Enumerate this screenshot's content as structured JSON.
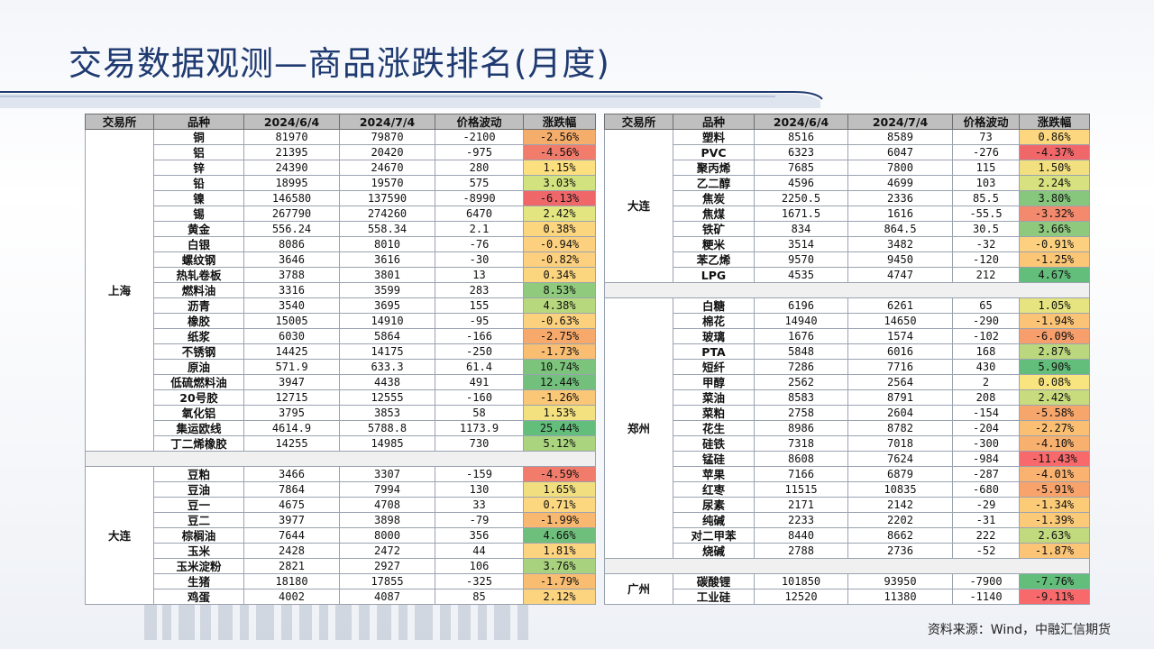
{
  "title": "交易数据观测—商品涨跌排名(月度)",
  "source": "资料来源：Wind，中融汇信期货",
  "headers": [
    "交易所",
    "品种",
    "2024/6/4",
    "2024/7/4",
    "价格波动",
    "涨跌幅"
  ],
  "left_groups": [
    {
      "exchange": "上海",
      "rows": [
        {
          "name": "铜",
          "d1": "81970",
          "d2": "79870",
          "chg": "-2100",
          "pct": "-2.56%",
          "color": "#f5ad6b"
        },
        {
          "name": "铝",
          "d1": "21395",
          "d2": "20420",
          "chg": "-975",
          "pct": "-4.56%",
          "color": "#f27c6c"
        },
        {
          "name": "锌",
          "d1": "24390",
          "d2": "24670",
          "chg": "280",
          "pct": "1.15%",
          "color": "#fcdf7e"
        },
        {
          "name": "铅",
          "d1": "18995",
          "d2": "19570",
          "chg": "575",
          "pct": "3.03%",
          "color": "#d2e27e"
        },
        {
          "name": "镍",
          "d1": "146580",
          "d2": "137590",
          "chg": "-8990",
          "pct": "-6.13%",
          "color": "#f0676a"
        },
        {
          "name": "锡",
          "d1": "267790",
          "d2": "274260",
          "chg": "6470",
          "pct": "2.42%",
          "color": "#e3e680"
        },
        {
          "name": "黄金",
          "d1": "556.24",
          "d2": "558.34",
          "chg": "2.1",
          "pct": "0.38%",
          "color": "#fcd57f"
        },
        {
          "name": "白银",
          "d1": "8086",
          "d2": "8010",
          "chg": "-76",
          "pct": "-0.94%",
          "color": "#fcd07e"
        },
        {
          "name": "螺纹钢",
          "d1": "3646",
          "d2": "3616",
          "chg": "-30",
          "pct": "-0.82%",
          "color": "#fcd07e"
        },
        {
          "name": "热轧卷板",
          "d1": "3788",
          "d2": "3801",
          "chg": "13",
          "pct": "0.34%",
          "color": "#fcd57f"
        },
        {
          "name": "燃料油",
          "d1": "3316",
          "d2": "3599",
          "chg": "283",
          "pct": "8.53%",
          "color": "#8fca7d"
        },
        {
          "name": "沥青",
          "d1": "3540",
          "d2": "3695",
          "chg": "155",
          "pct": "4.38%",
          "color": "#b8d87e"
        },
        {
          "name": "橡胶",
          "d1": "15005",
          "d2": "14910",
          "chg": "-95",
          "pct": "-0.63%",
          "color": "#fcd17e"
        },
        {
          "name": "纸浆",
          "d1": "6030",
          "d2": "5864",
          "chg": "-166",
          "pct": "-2.75%",
          "color": "#f6a96a"
        },
        {
          "name": "不锈钢",
          "d1": "14425",
          "d2": "14175",
          "chg": "-250",
          "pct": "-1.73%",
          "color": "#f9be72"
        },
        {
          "name": "原油",
          "d1": "571.9",
          "d2": "633.3",
          "chg": "61.4",
          "pct": "10.74%",
          "color": "#7cc47c"
        },
        {
          "name": "低硫燃料油",
          "d1": "3947",
          "d2": "4438",
          "chg": "491",
          "pct": "12.44%",
          "color": "#72c07b"
        },
        {
          "name": "20号胶",
          "d1": "12715",
          "d2": "12555",
          "chg": "-160",
          "pct": "-1.26%",
          "color": "#fac776"
        },
        {
          "name": "氧化铝",
          "d1": "3795",
          "d2": "3853",
          "chg": "58",
          "pct": "1.53%",
          "color": "#f3e07f"
        },
        {
          "name": "集运欧线",
          "d1": "4614.9",
          "d2": "5788.8",
          "chg": "1173.9",
          "pct": "25.44%",
          "color": "#63be7b"
        },
        {
          "name": "丁二烯橡胶",
          "d1": "14255",
          "d2": "14985",
          "chg": "730",
          "pct": "5.12%",
          "color": "#aad47e"
        }
      ]
    },
    {
      "exchange": "大连",
      "rows": [
        {
          "name": "豆粕",
          "d1": "3466",
          "d2": "3307",
          "chg": "-159",
          "pct": "-4.59%",
          "color": "#f27c6c"
        },
        {
          "name": "豆油",
          "d1": "7864",
          "d2": "7994",
          "chg": "130",
          "pct": "1.65%",
          "color": "#f1df7f"
        },
        {
          "name": "豆一",
          "d1": "4675",
          "d2": "4708",
          "chg": "33",
          "pct": "0.71%",
          "color": "#fcd77f"
        },
        {
          "name": "豆二",
          "d1": "3977",
          "d2": "3898",
          "chg": "-79",
          "pct": "-1.99%",
          "color": "#f8b86f"
        },
        {
          "name": "棕榈油",
          "d1": "7644",
          "d2": "8000",
          "chg": "356",
          "pct": "4.66%",
          "color": "#6fbf7c"
        },
        {
          "name": "玉米",
          "d1": "2428",
          "d2": "2472",
          "chg": "44",
          "pct": "1.81%",
          "color": "#fcd37f"
        },
        {
          "name": "玉米淀粉",
          "d1": "2821",
          "d2": "2927",
          "chg": "106",
          "pct": "3.76%",
          "color": "#a9d27e"
        },
        {
          "name": "生猪",
          "d1": "18180",
          "d2": "17855",
          "chg": "-325",
          "pct": "-1.79%",
          "color": "#f9bd72"
        },
        {
          "name": "鸡蛋",
          "d1": "4002",
          "d2": "4087",
          "chg": "85",
          "pct": "2.12%",
          "color": "#fcd37f"
        }
      ]
    }
  ],
  "right_groups": [
    {
      "exchange": "大连",
      "rows": [
        {
          "name": "塑料",
          "d1": "8516",
          "d2": "8589",
          "chg": "73",
          "pct": "0.86%",
          "color": "#fcd77f"
        },
        {
          "name": "PVC",
          "d1": "6323",
          "d2": "6047",
          "chg": "-276",
          "pct": "-4.37%",
          "color": "#f0676a"
        },
        {
          "name": "聚丙烯",
          "d1": "7685",
          "d2": "7800",
          "chg": "115",
          "pct": "1.50%",
          "color": "#f2df7f"
        },
        {
          "name": "乙二醇",
          "d1": "4596",
          "d2": "4699",
          "chg": "103",
          "pct": "2.24%",
          "color": "#d8e17f"
        },
        {
          "name": "焦炭",
          "d1": "2250.5",
          "d2": "2336",
          "chg": "85.5",
          "pct": "3.80%",
          "color": "#86c77d"
        },
        {
          "name": "焦煤",
          "d1": "1671.5",
          "d2": "1616",
          "chg": "-55.5",
          "pct": "-3.32%",
          "color": "#f38a6d"
        },
        {
          "name": "铁矿",
          "d1": "834",
          "d2": "864.5",
          "chg": "30.5",
          "pct": "3.66%",
          "color": "#8ec97d"
        },
        {
          "name": "粳米",
          "d1": "3514",
          "d2": "3482",
          "chg": "-32",
          "pct": "-0.91%",
          "color": "#fcd07e"
        },
        {
          "name": "苯乙烯",
          "d1": "9570",
          "d2": "9450",
          "chg": "-120",
          "pct": "-1.25%",
          "color": "#fbc777"
        },
        {
          "name": "LPG",
          "d1": "4535",
          "d2": "4747",
          "chg": "212",
          "pct": "4.67%",
          "color": "#63be7b"
        }
      ]
    },
    {
      "exchange": "郑州",
      "rows": [
        {
          "name": "白糖",
          "d1": "6196",
          "d2": "6261",
          "chg": "65",
          "pct": "1.05%",
          "color": "#e5e480"
        },
        {
          "name": "棉花",
          "d1": "14940",
          "d2": "14650",
          "chg": "-290",
          "pct": "-1.94%",
          "color": "#fbc376"
        },
        {
          "name": "玻璃",
          "d1": "1676",
          "d2": "1574",
          "chg": "-102",
          "pct": "-6.09%",
          "color": "#f69f6c"
        },
        {
          "name": "PTA",
          "d1": "5848",
          "d2": "6016",
          "chg": "168",
          "pct": "2.87%",
          "color": "#bcd87e"
        },
        {
          "name": "短纤",
          "d1": "7286",
          "d2": "7716",
          "chg": "430",
          "pct": "5.90%",
          "color": "#63be7b"
        },
        {
          "name": "甲醇",
          "d1": "2562",
          "d2": "2564",
          "chg": "2",
          "pct": "0.08%",
          "color": "#f8e57f"
        },
        {
          "name": "菜油",
          "d1": "8583",
          "d2": "8791",
          "chg": "208",
          "pct": "2.42%",
          "color": "#c8dc7e"
        },
        {
          "name": "菜粕",
          "d1": "2758",
          "d2": "2604",
          "chg": "-154",
          "pct": "-5.58%",
          "color": "#f7a66b"
        },
        {
          "name": "花生",
          "d1": "8986",
          "d2": "8782",
          "chg": "-204",
          "pct": "-2.27%",
          "color": "#fbbf74"
        },
        {
          "name": "硅铁",
          "d1": "7318",
          "d2": "7018",
          "chg": "-300",
          "pct": "-4.10%",
          "color": "#f8b06e"
        },
        {
          "name": "锰硅",
          "d1": "8608",
          "d2": "7624",
          "chg": "-984",
          "pct": "-11.43%",
          "color": "#f8696b"
        },
        {
          "name": "苹果",
          "d1": "7166",
          "d2": "6879",
          "chg": "-287",
          "pct": "-4.01%",
          "color": "#f9b26f"
        },
        {
          "name": "红枣",
          "d1": "11515",
          "d2": "10835",
          "chg": "-680",
          "pct": "-5.91%",
          "color": "#f7a36b"
        },
        {
          "name": "尿素",
          "d1": "2171",
          "d2": "2142",
          "chg": "-29",
          "pct": "-1.34%",
          "color": "#fbcb78"
        },
        {
          "name": "纯碱",
          "d1": "2233",
          "d2": "2202",
          "chg": "-31",
          "pct": "-1.39%",
          "color": "#fbca78"
        },
        {
          "name": "对二甲苯",
          "d1": "8440",
          "d2": "8662",
          "chg": "222",
          "pct": "2.63%",
          "color": "#c2da7e"
        },
        {
          "name": "烧碱",
          "d1": "2788",
          "d2": "2736",
          "chg": "-52",
          "pct": "-1.87%",
          "color": "#fbc476"
        }
      ]
    },
    {
      "exchange": "广州",
      "rows": [
        {
          "name": "碳酸锂",
          "d1": "101850",
          "d2": "93950",
          "chg": "-7900",
          "pct": "-7.76%",
          "color": "#63be7b"
        },
        {
          "name": "工业硅",
          "d1": "12520",
          "d2": "11380",
          "chg": "-1140",
          "pct": "-9.11%",
          "color": "#f8696b"
        }
      ]
    }
  ]
}
